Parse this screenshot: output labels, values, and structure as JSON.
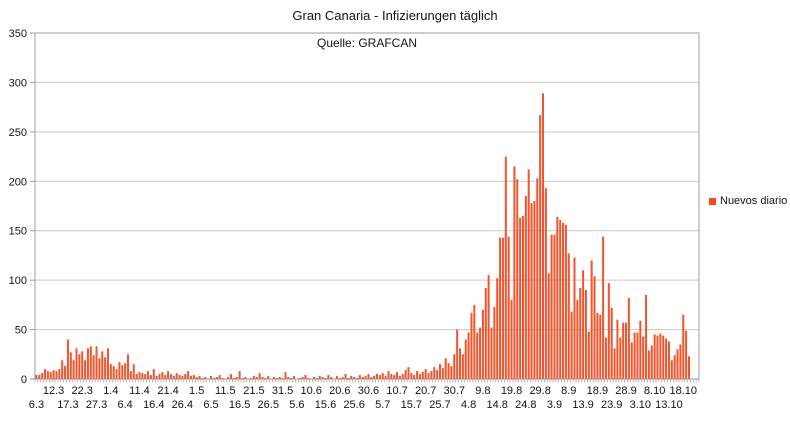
{
  "title": "Gran Canaria - Infizierungen täglich",
  "subtitle": "Quelle: GRAFCAN",
  "legend": {
    "label": "Nuevos diario",
    "color": "#ff4713",
    "position": "right"
  },
  "colors": {
    "background": "#ffffff",
    "bar": "#f2542c",
    "grid": "#c9c9c9",
    "axis": "#9e9e9e",
    "text": "#141414"
  },
  "chart_data": {
    "type": "bar",
    "title": "Gran Canaria - Infizierungen täglich",
    "subtitle": "Quelle: GRAFCAN",
    "xlabel": "",
    "ylabel": "",
    "ylim": [
      0,
      350
    ],
    "yticks": [
      0,
      50,
      100,
      150,
      200,
      250,
      300,
      350
    ],
    "grid": "horizontal",
    "legend_position": "right",
    "x_unit": "day",
    "x_first": "6.3",
    "n_days": 229,
    "xticks": [
      {
        "label": "6.3",
        "day": 0,
        "row": "lower"
      },
      {
        "label": "12.3",
        "day": 6,
        "row": "upper"
      },
      {
        "label": "17.3",
        "day": 11,
        "row": "lower"
      },
      {
        "label": "22.3",
        "day": 16,
        "row": "upper"
      },
      {
        "label": "27.3",
        "day": 21,
        "row": "lower"
      },
      {
        "label": "1.4",
        "day": 26,
        "row": "upper"
      },
      {
        "label": "6.4",
        "day": 31,
        "row": "lower"
      },
      {
        "label": "11.4",
        "day": 36,
        "row": "upper"
      },
      {
        "label": "16.4",
        "day": 41,
        "row": "lower"
      },
      {
        "label": "21.4",
        "day": 46,
        "row": "upper"
      },
      {
        "label": "26.4",
        "day": 51,
        "row": "lower"
      },
      {
        "label": "1.5",
        "day": 56,
        "row": "upper"
      },
      {
        "label": "6.5",
        "day": 61,
        "row": "lower"
      },
      {
        "label": "11.5",
        "day": 66,
        "row": "upper"
      },
      {
        "label": "16.5",
        "day": 71,
        "row": "lower"
      },
      {
        "label": "21.5",
        "day": 76,
        "row": "upper"
      },
      {
        "label": "26.5",
        "day": 81,
        "row": "lower"
      },
      {
        "label": "31.5",
        "day": 86,
        "row": "upper"
      },
      {
        "label": "5.6",
        "day": 91,
        "row": "lower"
      },
      {
        "label": "10.6",
        "day": 96,
        "row": "upper"
      },
      {
        "label": "15.6",
        "day": 101,
        "row": "lower"
      },
      {
        "label": "20.6",
        "day": 106,
        "row": "upper"
      },
      {
        "label": "25.6",
        "day": 111,
        "row": "lower"
      },
      {
        "label": "30.6",
        "day": 116,
        "row": "upper"
      },
      {
        "label": "5.7",
        "day": 121,
        "row": "lower"
      },
      {
        "label": "10.7",
        "day": 126,
        "row": "upper"
      },
      {
        "label": "15.7",
        "day": 131,
        "row": "lower"
      },
      {
        "label": "20.7",
        "day": 136,
        "row": "upper"
      },
      {
        "label": "25.7",
        "day": 141,
        "row": "lower"
      },
      {
        "label": "30.7",
        "day": 146,
        "row": "upper"
      },
      {
        "label": "4.8",
        "day": 151,
        "row": "lower"
      },
      {
        "label": "9.8",
        "day": 156,
        "row": "upper"
      },
      {
        "label": "14.8",
        "day": 161,
        "row": "lower"
      },
      {
        "label": "19.8",
        "day": 166,
        "row": "upper"
      },
      {
        "label": "24.8",
        "day": 171,
        "row": "lower"
      },
      {
        "label": "29.8",
        "day": 176,
        "row": "upper"
      },
      {
        "label": "3.9",
        "day": 181,
        "row": "lower"
      },
      {
        "label": "8.9",
        "day": 186,
        "row": "upper"
      },
      {
        "label": "13.9",
        "day": 191,
        "row": "lower"
      },
      {
        "label": "18.9",
        "day": 196,
        "row": "upper"
      },
      {
        "label": "23.9",
        "day": 201,
        "row": "lower"
      },
      {
        "label": "28.9",
        "day": 206,
        "row": "upper"
      },
      {
        "label": "3.10",
        "day": 211,
        "row": "lower"
      },
      {
        "label": "8.10",
        "day": 216,
        "row": "upper"
      },
      {
        "label": "13.10",
        "day": 221,
        "row": "lower"
      },
      {
        "label": "18.10",
        "day": 226,
        "row": "upper"
      }
    ],
    "series": [
      {
        "name": "Nuevos diario",
        "color": "#f2542c",
        "values": [
          4,
          4,
          6,
          10,
          8,
          7,
          9,
          8,
          10,
          19,
          13,
          40,
          27,
          19,
          31,
          25,
          28,
          19,
          31,
          33,
          24,
          33,
          21,
          28,
          22,
          31,
          15,
          13,
          10,
          17,
          14,
          16,
          25,
          8,
          15,
          5,
          7,
          6,
          5,
          8,
          4,
          10,
          3,
          5,
          7,
          4,
          8,
          5,
          3,
          6,
          4,
          3,
          5,
          8,
          3,
          4,
          2,
          3,
          1,
          2,
          0,
          3,
          1,
          2,
          4,
          1,
          0,
          2,
          5,
          1,
          2,
          8,
          1,
          2,
          0,
          1,
          3,
          2,
          6,
          2,
          1,
          3,
          0,
          2,
          1,
          2,
          1,
          7,
          2,
          1,
          3,
          0,
          1,
          2,
          4,
          1,
          0,
          2,
          1,
          3,
          2,
          1,
          4,
          2,
          0,
          3,
          1,
          2,
          5,
          1,
          3,
          2,
          1,
          4,
          2,
          3,
          5,
          2,
          3,
          5,
          4,
          6,
          3,
          8,
          5,
          4,
          7,
          3,
          5,
          9,
          12,
          6,
          4,
          8,
          5,
          7,
          10,
          6,
          8,
          12,
          9,
          15,
          11,
          21,
          16,
          13,
          25,
          50,
          31,
          25,
          40,
          47,
          67,
          75,
          47,
          52,
          70,
          92,
          105,
          52,
          73,
          102,
          143,
          143,
          225,
          144,
          80,
          215,
          202,
          163,
          165,
          185,
          212,
          178,
          180,
          203,
          267,
          289,
          193,
          107,
          146,
          146,
          164,
          161,
          158,
          156,
          127,
          68,
          123,
          80,
          92,
          110,
          90,
          48,
          120,
          104,
          67,
          65,
          144,
          42,
          97,
          72,
          31,
          60,
          42,
          57,
          57,
          82,
          37,
          47,
          47,
          59,
          43,
          85,
          29,
          34,
          45,
          44,
          46,
          44,
          41,
          38,
          19,
          24,
          30,
          35,
          65,
          49,
          23
        ]
      }
    ],
    "geometry": {
      "plot_left": 35,
      "plot_top": 33,
      "plot_right": 699,
      "plot_bottom": 379,
      "slots": 232
    }
  }
}
